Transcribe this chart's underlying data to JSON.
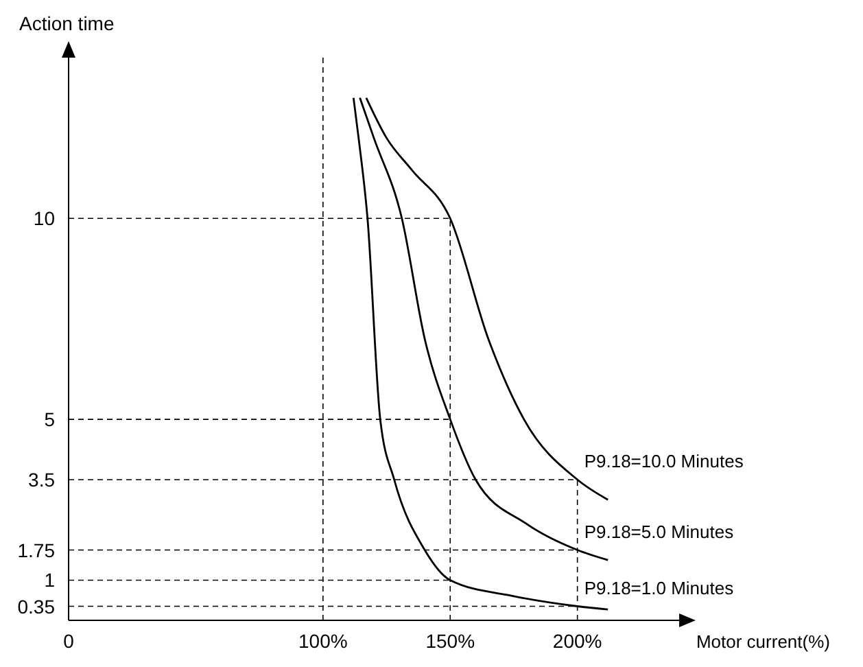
{
  "chart_data": {
    "type": "line",
    "xlabel": "Motor current(%)",
    "ylabel": "Action time",
    "xlim": [
      0,
      240
    ],
    "ylim": [
      0,
      14
    ],
    "legend": false,
    "xticks": [
      {
        "value": 0,
        "label": "0"
      },
      {
        "value": 100,
        "label": "100%"
      },
      {
        "value": 150,
        "label": "150%"
      },
      {
        "value": 200,
        "label": "200%"
      }
    ],
    "yticks": [
      {
        "value": 0.35,
        "label": "0.35"
      },
      1,
      1.75,
      3.5,
      5,
      10
    ],
    "grid": false,
    "marker": "none",
    "line_style": "solid",
    "series": [
      {
        "name": "P9.18=10.0 Minutes",
        "color": "#000000",
        "x": [
          117,
          125,
          135,
          150,
          165,
          179,
          200,
          212
        ],
        "values": [
          13,
          12,
          11.2,
          10,
          7,
          5,
          3.5,
          3
        ]
      },
      {
        "name": "P9.18=5.0 Minutes",
        "color": "#000000",
        "x": [
          114.5,
          120,
          131,
          140,
          150,
          160,
          180,
          200,
          212
        ],
        "values": [
          13,
          12,
          10,
          7,
          5,
          3.5,
          2.4,
          1.75,
          1.5
        ]
      },
      {
        "name": "P9.18=1.0 Minutes",
        "color": "#000000",
        "x": [
          112,
          114,
          117.5,
          122.5,
          128,
          140,
          150,
          175,
          200,
          212
        ],
        "values": [
          13,
          12,
          10,
          5,
          3.5,
          1.75,
          1,
          0.6,
          0.35,
          0.27
        ]
      }
    ],
    "ref_lines": [
      {
        "axis": "x",
        "value": 100,
        "line_style": "dashed",
        "color": "#000000"
      },
      {
        "axis": "x",
        "value": 150,
        "line_style": "dashed",
        "color": "#000000"
      },
      {
        "axis": "x",
        "value": 200,
        "line_style": "dashed",
        "color": "#000000"
      },
      {
        "axis": "y",
        "value": 10,
        "line_style": "dashed",
        "color": "#000000"
      },
      {
        "axis": "y",
        "value": 5,
        "line_style": "dashed",
        "color": "#000000"
      },
      {
        "axis": "y",
        "value": 3.5,
        "line_style": "dashed",
        "color": "#000000"
      },
      {
        "axis": "y",
        "value": 1.75,
        "line_style": "dashed",
        "color": "#000000"
      },
      {
        "axis": "y",
        "value": 1,
        "line_style": "dashed",
        "color": "#000000"
      },
      {
        "axis": "y",
        "value": 0.35,
        "line_style": "dashed",
        "color": "#000000"
      }
    ]
  }
}
